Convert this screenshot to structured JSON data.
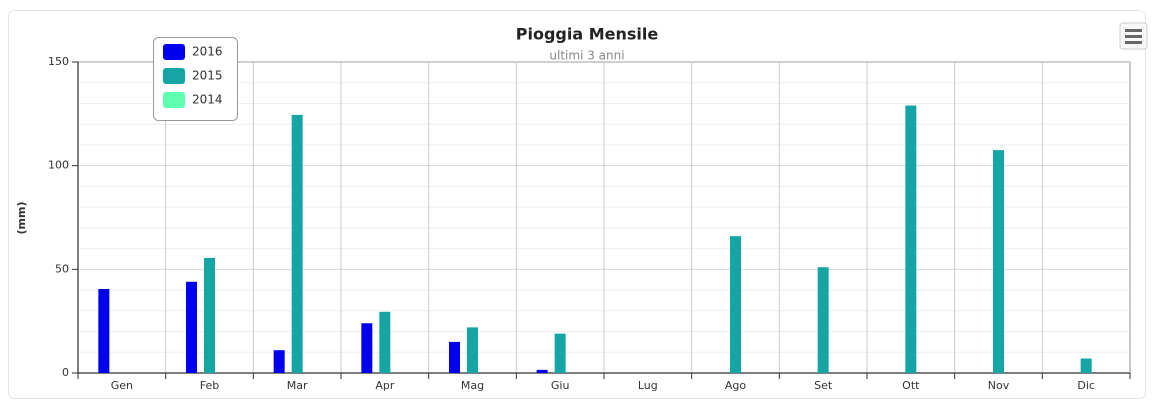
{
  "chart_data": {
    "type": "bar",
    "title": "Pioggia Mensile",
    "subtitle": "ultimi 3 anni",
    "y_label": "(mm)",
    "categories": [
      "Gen",
      "Feb",
      "Mar",
      "Apr",
      "Mag",
      "Giu",
      "Lug",
      "Ago",
      "Set",
      "Ott",
      "Nov",
      "Dic"
    ],
    "series": [
      {
        "name": "2016",
        "color": "#0000ee",
        "values": [
          40.5,
          44,
          11,
          24,
          15,
          1.5,
          null,
          null,
          null,
          null,
          null,
          null
        ]
      },
      {
        "name": "2015",
        "color": "#16a5a5",
        "values": [
          null,
          55.5,
          124.5,
          29.5,
          22,
          19,
          null,
          66,
          51,
          129,
          107.5,
          7
        ]
      },
      {
        "name": "2014",
        "color": "#5fffb0",
        "values": [
          null,
          null,
          null,
          null,
          null,
          null,
          null,
          null,
          null,
          null,
          null,
          null
        ]
      }
    ],
    "ylim": [
      0,
      150
    ],
    "yticks": [
      0,
      50,
      100,
      150
    ],
    "minor_yticks": [
      10,
      20,
      30,
      40,
      60,
      70,
      80,
      90,
      110,
      120,
      130,
      140
    ],
    "grid": true,
    "legend": "top-left"
  }
}
